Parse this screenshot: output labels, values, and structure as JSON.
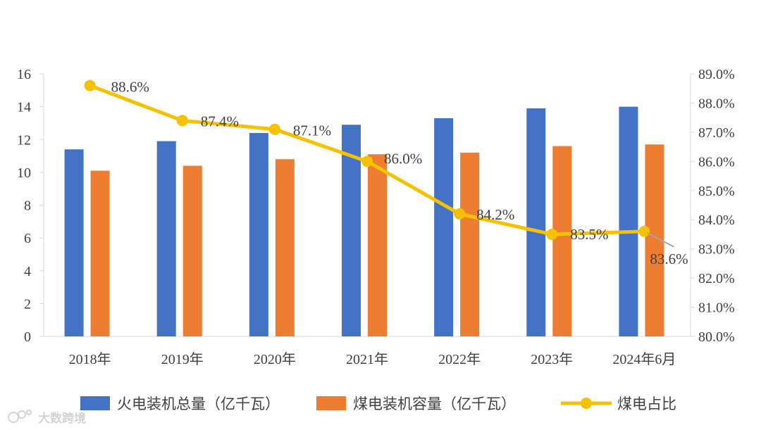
{
  "chart_data": {
    "type": "bar+line",
    "categories": [
      "2018年",
      "2019年",
      "2020年",
      "2021年",
      "2022年",
      "2023年",
      "2024年6月"
    ],
    "series": [
      {
        "name": "火电装机总量（亿千瓦）",
        "kind": "bar",
        "axis": "left",
        "color": "#4472C4",
        "values": [
          11.4,
          11.9,
          12.4,
          12.9,
          13.3,
          13.9,
          14.0
        ]
      },
      {
        "name": "煤电装机容量（亿千瓦）",
        "kind": "bar",
        "axis": "left",
        "color": "#ED7D31",
        "values": [
          10.1,
          10.4,
          10.8,
          11.1,
          11.2,
          11.6,
          11.7
        ]
      },
      {
        "name": "煤电占比",
        "kind": "line",
        "axis": "right",
        "color": "#F5C100",
        "values": [
          88.6,
          87.4,
          87.1,
          86.0,
          84.2,
          83.5,
          83.6
        ],
        "labels": [
          "88.6%",
          "87.4%",
          "87.1%",
          "86.0%",
          "84.2%",
          "83.5%",
          "83.6%"
        ]
      }
    ],
    "left_axis": {
      "min": 0,
      "max": 16,
      "step": 2,
      "ticks": [
        "0",
        "2",
        "4",
        "6",
        "8",
        "10",
        "12",
        "14",
        "16"
      ]
    },
    "right_axis": {
      "min": 80,
      "max": 89,
      "step": 1,
      "ticks": [
        "80.0%",
        "81.0%",
        "82.0%",
        "83.0%",
        "84.0%",
        "85.0%",
        "86.0%",
        "87.0%",
        "88.0%",
        "89.0%"
      ]
    },
    "legend_position": "bottom",
    "grid": false
  },
  "watermark": {
    "text": "大数跨境",
    "icon": "logo-icon"
  }
}
